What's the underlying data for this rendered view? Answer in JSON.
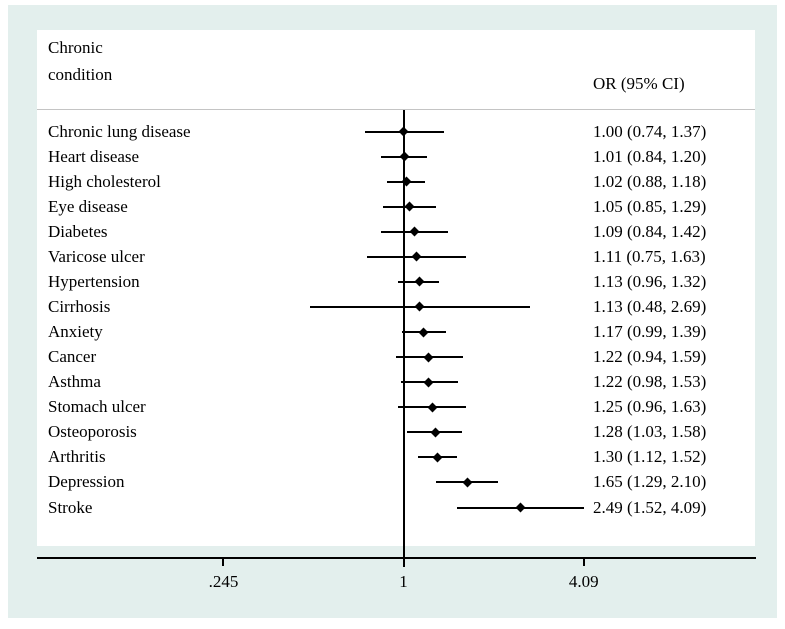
{
  "figure": {
    "header_col1_line1": "Chronic",
    "header_col1_line2": "condition",
    "header_col2": "OR (95% CI)"
  },
  "chart_data": {
    "type": "scatter",
    "subtype": "forest-plot",
    "title": "",
    "xlabel": "",
    "ylabel": "Chronic condition",
    "x_scale": "log",
    "x_axis_range": [
      0.17,
      15
    ],
    "grid": false,
    "legend": "none",
    "reference_line_x": 1,
    "x_ticks": [
      {
        "value": 0.245,
        "label": ".245"
      },
      {
        "value": 1,
        "label": "1"
      },
      {
        "value": 4.09,
        "label": "4.09"
      }
    ],
    "value_column_header": "OR (95% CI)",
    "rows": [
      {
        "condition": "Chronic lung disease",
        "or": 1.0,
        "ci_low": 0.74,
        "ci_high": 1.37,
        "display": "1.00 (0.74, 1.37)"
      },
      {
        "condition": "Heart disease",
        "or": 1.01,
        "ci_low": 0.84,
        "ci_high": 1.2,
        "display": "1.01 (0.84, 1.20)"
      },
      {
        "condition": "High cholesterol",
        "or": 1.02,
        "ci_low": 0.88,
        "ci_high": 1.18,
        "display": "1.02 (0.88, 1.18)"
      },
      {
        "condition": "Eye disease",
        "or": 1.05,
        "ci_low": 0.85,
        "ci_high": 1.29,
        "display": "1.05 (0.85, 1.29)"
      },
      {
        "condition": "Diabetes",
        "or": 1.09,
        "ci_low": 0.84,
        "ci_high": 1.42,
        "display": "1.09 (0.84, 1.42)"
      },
      {
        "condition": "Varicose ulcer",
        "or": 1.11,
        "ci_low": 0.75,
        "ci_high": 1.63,
        "display": "1.11 (0.75, 1.63)"
      },
      {
        "condition": "Hypertension",
        "or": 1.13,
        "ci_low": 0.96,
        "ci_high": 1.32,
        "display": "1.13 (0.96, 1.32)"
      },
      {
        "condition": "Cirrhosis",
        "or": 1.13,
        "ci_low": 0.48,
        "ci_high": 2.69,
        "display": "1.13 (0.48, 2.69)"
      },
      {
        "condition": "Anxiety",
        "or": 1.17,
        "ci_low": 0.99,
        "ci_high": 1.39,
        "display": "1.17 (0.99, 1.39)"
      },
      {
        "condition": "Cancer",
        "or": 1.22,
        "ci_low": 0.94,
        "ci_high": 1.59,
        "display": "1.22 (0.94, 1.59)"
      },
      {
        "condition": "Asthma",
        "or": 1.22,
        "ci_low": 0.98,
        "ci_high": 1.53,
        "display": "1.22 (0.98, 1.53)"
      },
      {
        "condition": "Stomach ulcer",
        "or": 1.25,
        "ci_low": 0.96,
        "ci_high": 1.63,
        "display": "1.25 (0.96, 1.63)"
      },
      {
        "condition": "Osteoporosis",
        "or": 1.28,
        "ci_low": 1.03,
        "ci_high": 1.58,
        "display": "1.28 (1.03, 1.58)"
      },
      {
        "condition": "Arthritis",
        "or": 1.3,
        "ci_low": 1.12,
        "ci_high": 1.52,
        "display": "1.30 (1.12, 1.52)"
      },
      {
        "condition": "Depression",
        "or": 1.65,
        "ci_low": 1.29,
        "ci_high": 2.1,
        "display": "1.65 (1.29, 2.10)"
      },
      {
        "condition": "Stroke",
        "or": 2.49,
        "ci_low": 1.52,
        "ci_high": 4.09,
        "display": "2.49 (1.52, 4.09)"
      }
    ]
  },
  "colors": {
    "figure_background": "#e3efed",
    "plot_background": "#ffffff",
    "ink": "#000000",
    "header_rule": "#c4c4c4"
  }
}
